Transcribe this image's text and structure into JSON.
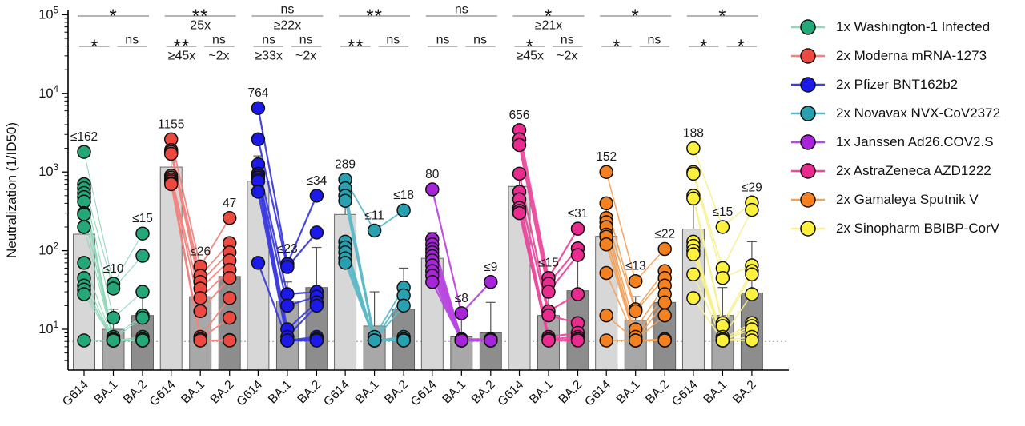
{
  "chart_data": {
    "type": "bar",
    "subtype": "grouped-bars-with-paired-scatter-log-scale",
    "title": "",
    "xlabel": "",
    "ylabel": "Neutralization (1/ID50)",
    "y_scale": "log10",
    "ytick_exponents": [
      1,
      2,
      3,
      4,
      5
    ],
    "ylim": [
      5,
      100000
    ],
    "limit_of_detection": 7,
    "grid": false,
    "legend_position": "right",
    "categories": [
      "G614",
      "BA.1",
      "BA.2"
    ],
    "bar_fill_colors": [
      "#d7d7d7",
      "#a8a8a8",
      "#8d8d8d"
    ],
    "bar_stroke_color": "#5a5a5a",
    "whisker_color": "#555555",
    "sig_line_color": "#8a8a8a",
    "text_color": "#1a1a1a",
    "groups": [
      {
        "name": "1x Washington-1 Infected",
        "point_color": "#25a878",
        "line_color": "#8fd8b9",
        "line_width": 1.1,
        "bars": [
          {
            "category": "G614",
            "label": "≤162",
            "value": 162,
            "whisker_top": 400
          },
          {
            "category": "BA.1",
            "label": "≤10",
            "value": 10,
            "whisker_top": 18
          },
          {
            "category": "BA.2",
            "label": "≤15",
            "value": 15,
            "whisker_top": 26
          }
        ],
        "points": {
          "G614": [
            1800,
            700,
            620,
            540,
            480,
            420,
            300,
            290,
            200,
            70,
            45,
            36,
            32,
            28,
            7.2
          ],
          "BA.1": [
            38,
            33,
            14,
            8,
            7.5,
            7.2,
            7.2,
            7.2,
            7.2,
            7.2,
            7.2,
            7.2,
            7.2,
            7.2,
            7.2
          ],
          "BA.2": [
            165,
            86,
            30,
            15,
            14,
            8,
            7.5,
            7.2,
            7.2,
            7.2,
            7.2,
            7.2,
            7.2,
            7.2,
            7.2
          ]
        },
        "sig": {
          "top": {
            "symbol": "*",
            "fold": ""
          },
          "left": {
            "symbol": "*",
            "fold": ""
          },
          "right": {
            "symbol": "ns",
            "fold": ""
          }
        }
      },
      {
        "name": "2x Moderna mRNA-1273",
        "point_color": "#ec4a41",
        "line_color": "#f2837d",
        "line_width": 1.8,
        "bars": [
          {
            "category": "G614",
            "label": "1155",
            "value": 1155,
            "whisker_top": 1900
          },
          {
            "category": "BA.1",
            "label": "≤26",
            "value": 26,
            "whisker_top": 45
          },
          {
            "category": "BA.2",
            "label": "47",
            "value": 47,
            "whisker_top": 90
          }
        ],
        "points": {
          "G614": [
            2600,
            1900,
            1800,
            1700,
            900,
            850,
            800,
            760,
            720,
            700
          ],
          "BA.1": [
            63,
            48,
            40,
            33,
            25,
            17,
            8,
            7.5,
            7.2,
            7.2
          ],
          "BA.2": [
            260,
            125,
            95,
            75,
            57,
            45,
            25,
            14,
            7.3,
            7.2
          ]
        },
        "sig": {
          "top": {
            "symbol": "**",
            "fold": "25x"
          },
          "left": {
            "symbol": "**",
            "fold": "≥45x"
          },
          "right": {
            "symbol": "ns",
            "fold": "~2x"
          }
        }
      },
      {
        "name": "2x Pfizer BNT162b2",
        "point_color": "#1b1ae8",
        "line_color": "#3d3ce0",
        "line_width": 2.2,
        "bars": [
          {
            "category": "G614",
            "label": "764",
            "value": 764,
            "whisker_top": 1600
          },
          {
            "category": "BA.1",
            "label": "≤23",
            "value": 23,
            "whisker_top": 40
          },
          {
            "category": "BA.2",
            "label": "≤34",
            "value": 34,
            "whisker_top": 110
          }
        ],
        "points": {
          "G614": [
            6500,
            2600,
            1250,
            950,
            900,
            850,
            800,
            760,
            560,
            70
          ],
          "BA.1": [
            68,
            62,
            28,
            20,
            10,
            8,
            7.2,
            7.2,
            7.2,
            7.2
          ],
          "BA.2": [
            500,
            170,
            30,
            26,
            22,
            20,
            8,
            7.5,
            7.2,
            7.2
          ]
        },
        "sig": {
          "top": {
            "symbol": "ns",
            "fold": "≥22x"
          },
          "left": {
            "symbol": "ns",
            "fold": "≥33x"
          },
          "right": {
            "symbol": "ns",
            "fold": "~2x"
          }
        }
      },
      {
        "name": "2x Novavax NVX-CoV2372",
        "point_color": "#28a0b0",
        "line_color": "#5cb9c6",
        "line_width": 1.8,
        "bars": [
          {
            "category": "G614",
            "label": "289",
            "value": 289,
            "whisker_top": 600
          },
          {
            "category": "BA.1",
            "label": "≤11",
            "value": 11,
            "whisker_top": 30
          },
          {
            "category": "BA.2",
            "label": "≤18",
            "value": 18,
            "whisker_top": 60
          }
        ],
        "points": {
          "G614": [
            800,
            620,
            500,
            430,
            130,
            110,
            95,
            80,
            70
          ],
          "BA.1": [
            180,
            8,
            7.2,
            7.2,
            7.2,
            7.2,
            7.2,
            7.2,
            7.2
          ],
          "BA.2": [
            325,
            34,
            27,
            20,
            8,
            7.5,
            7.2,
            7.2,
            7.2
          ]
        },
        "sig": {
          "top": {
            "symbol": "**",
            "fold": ""
          },
          "left": {
            "symbol": "**",
            "fold": ""
          },
          "right": {
            "symbol": "ns",
            "fold": ""
          }
        }
      },
      {
        "name": "1x Janssen Ad26.COV2.S",
        "point_color": "#a724d8",
        "line_color": "#b848e0",
        "line_width": 2.2,
        "bars": [
          {
            "category": "G614",
            "label": "80",
            "value": 80,
            "whisker_top": 170
          },
          {
            "category": "BA.1",
            "label": "≤8",
            "value": 8,
            "whisker_top": 14
          },
          {
            "category": "BA.2",
            "label": "≤9",
            "value": 9,
            "whisker_top": 22
          }
        ],
        "points": {
          "G614": [
            600,
            140,
            120,
            105,
            95,
            85,
            75,
            65,
            55,
            48,
            40
          ],
          "BA.1": [
            16,
            7.5,
            7.2,
            7.2,
            7.2,
            7.2,
            7.2,
            7.2,
            7.2,
            7.2,
            7.2
          ],
          "BA.2": [
            40,
            7.5,
            7.2,
            7.2,
            7.2,
            7.2,
            7.2,
            7.2,
            7.2,
            7.2,
            7.2
          ]
        },
        "sig": {
          "top": {
            "symbol": "ns",
            "fold": ""
          },
          "left": {
            "symbol": "ns",
            "fold": ""
          },
          "right": {
            "symbol": "ns",
            "fold": ""
          }
        }
      },
      {
        "name": "2x AstraZeneca AZD1222",
        "point_color": "#e92a8e",
        "line_color": "#ec4a9e",
        "line_width": 2.2,
        "bars": [
          {
            "category": "G614",
            "label": "656",
            "value": 656,
            "whisker_top": 1100
          },
          {
            "category": "BA.1",
            "label": "≤15",
            "value": 15,
            "whisker_top": 35
          },
          {
            "category": "BA.2",
            "label": "≤31",
            "value": 31,
            "whisker_top": 80
          }
        ],
        "points": {
          "G614": [
            3400,
            2600,
            2200,
            950,
            560,
            450,
            350,
            320,
            300
          ],
          "BA.1": [
            45,
            38,
            30,
            17,
            15,
            8,
            7.5,
            7.2,
            7.2
          ],
          "BA.2": [
            190,
            107,
            88,
            28,
            12,
            9,
            8,
            7.5,
            7.2
          ]
        },
        "sig": {
          "top": {
            "symbol": "*",
            "fold": "≥21x"
          },
          "left": {
            "symbol": "*",
            "fold": "≥45x"
          },
          "right": {
            "symbol": "ns",
            "fold": "~2x"
          }
        }
      },
      {
        "name": "2x Gamaleya Sputnik V",
        "point_color": "#f58020",
        "line_color": "#f5a055",
        "line_width": 1.5,
        "bars": [
          {
            "category": "G614",
            "label": "152",
            "value": 152,
            "whisker_top": 350
          },
          {
            "category": "BA.1",
            "label": "≤13",
            "value": 13,
            "whisker_top": 26
          },
          {
            "category": "BA.2",
            "label": "≤22",
            "value": 22,
            "whisker_top": 48
          }
        ],
        "points": {
          "G614": [
            1000,
            400,
            260,
            230,
            200,
            160,
            150,
            120,
            52,
            15,
            7.2
          ],
          "BA.1": [
            41,
            18,
            17,
            10,
            8,
            7.2,
            7.2,
            7.2,
            7.2,
            7.2,
            7.2
          ],
          "BA.2": [
            105,
            55,
            45,
            36,
            28,
            22,
            15,
            7.5,
            7.2,
            7.2,
            7.2
          ]
        },
        "sig": {
          "top": {
            "symbol": "*",
            "fold": ""
          },
          "left": {
            "symbol": "*",
            "fold": ""
          },
          "right": {
            "symbol": "ns",
            "fold": ""
          }
        }
      },
      {
        "name": "2x Sinopharm BBIBP-CorV",
        "point_color": "#fdf13d",
        "line_color": "#f7f08e",
        "line_width": 1.5,
        "bars": [
          {
            "category": "G614",
            "label": "188",
            "value": 188,
            "whisker_top": 420
          },
          {
            "category": "BA.1",
            "label": "≤15",
            "value": 15,
            "whisker_top": 34
          },
          {
            "category": "BA.2",
            "label": "≤29",
            "value": 29,
            "whisker_top": 130
          }
        ],
        "points": {
          "G614": [
            2000,
            1000,
            950,
            500,
            460,
            130,
            115,
            100,
            90,
            50,
            25
          ],
          "BA.1": [
            200,
            60,
            45,
            12,
            11,
            8,
            7.5,
            7.2,
            7.2,
            7.2,
            7.2
          ],
          "BA.2": [
            410,
            330,
            65,
            55,
            50,
            28,
            12,
            11,
            10,
            8,
            7.2
          ]
        },
        "sig": {
          "top": {
            "symbol": "*",
            "fold": ""
          },
          "left": {
            "symbol": "*",
            "fold": ""
          },
          "right": {
            "symbol": "*",
            "fold": ""
          }
        }
      }
    ]
  }
}
